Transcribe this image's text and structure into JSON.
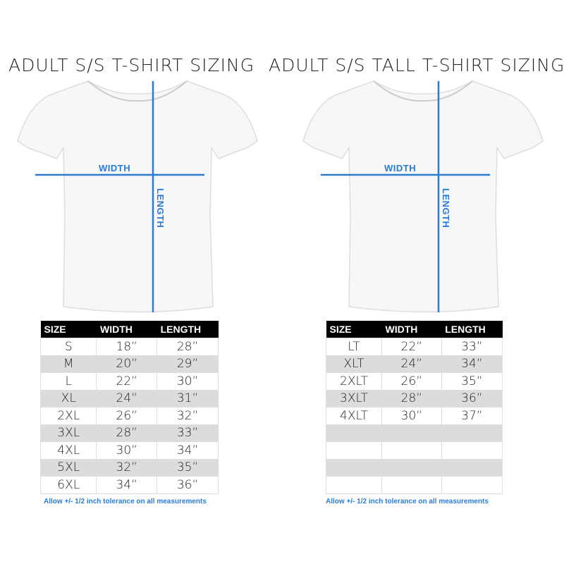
{
  "left": {
    "title": "ADULT S/S T-SHIRT SIZING",
    "width_label": "WIDTH",
    "length_label": "LENGTH",
    "headers": [
      "SIZE",
      "WIDTH",
      "LENGTH"
    ],
    "rows": [
      [
        "S",
        "18”",
        "28”"
      ],
      [
        "M",
        "20”",
        "29”"
      ],
      [
        "L",
        "22”",
        "30”"
      ],
      [
        "XL",
        "24”",
        "31”"
      ],
      [
        "2XL",
        "26”",
        "32”"
      ],
      [
        "3XL",
        "28”",
        "33”"
      ],
      [
        "4XL",
        "30”",
        "34”"
      ],
      [
        "5XL",
        "32”",
        "35”"
      ],
      [
        "6XL",
        "34”",
        "36”"
      ]
    ],
    "note": "Allow +/- 1/2 inch tolerance on all measurements"
  },
  "right": {
    "title": "ADULT S/S TALL T-SHIRT SIZING",
    "width_label": "WIDTH",
    "length_label": "LENGTH",
    "headers": [
      "SIZE",
      "WIDTH",
      "LENGTH"
    ],
    "rows": [
      [
        "LT",
        "22”",
        "33”"
      ],
      [
        "XLT",
        "24”",
        "34”"
      ],
      [
        "2XLT",
        "26”",
        "35”"
      ],
      [
        "3XLT",
        "28”",
        "36”"
      ],
      [
        "4XLT",
        "30”",
        "37”"
      ],
      [
        "",
        "",
        ""
      ],
      [
        "",
        "",
        ""
      ],
      [
        "",
        "",
        ""
      ],
      [
        "",
        "",
        ""
      ]
    ],
    "note": "Allow +/- 1/2 inch tolerance on all measurements"
  },
  "colors": {
    "accent": "#2a7bd8",
    "header_bg": "#000000",
    "alt_row": "#dcdcdc"
  }
}
